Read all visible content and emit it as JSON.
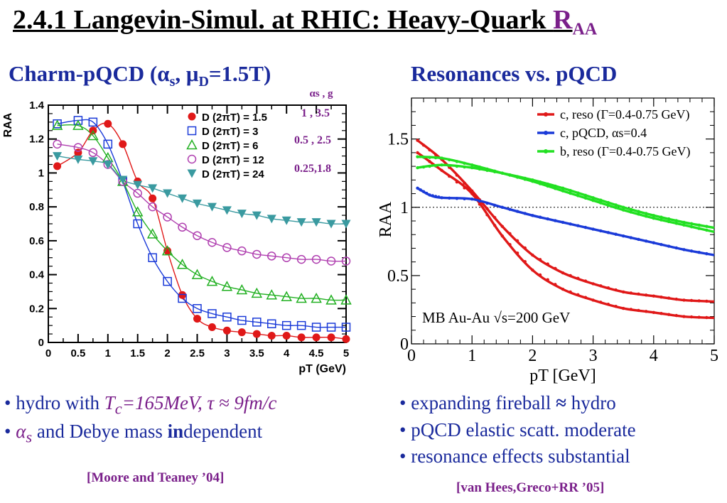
{
  "slide": {
    "title_main": "2.4.1 Langevin-Simul. at RHIC: Heavy-Quark ",
    "title_raa": "R",
    "title_raa_sub": "AA",
    "left_heading_a": "Charm-pQCD (",
    "left_heading_alpha": "α",
    "left_heading_alpha_sub": "s",
    "left_heading_b": ", ",
    "left_heading_mu": "μ",
    "left_heading_mu_sub": "D",
    "left_heading_c": "=1.5T)",
    "right_heading": "Resonances vs. pQCD",
    "left_bullets": [
      {
        "a": "• hydro with ",
        "b": "T",
        "b_sub": "c",
        "c": "=165MeV,  τ ≈ 9fm/c"
      },
      {
        "a": "• ",
        "b": "α",
        "b_sub": "s",
        "c": " and Debye mass ",
        "d": "in",
        "e": "dependent"
      }
    ],
    "right_bullets": [
      {
        "a": "• expanding fireball ",
        "b": "≈",
        "c": " hydro"
      },
      {
        "a": "• pQCD elastic scatt. moderate"
      },
      {
        "a": "• resonance effects substantial"
      }
    ],
    "left_ref": "[Moore and Teaney ’04]",
    "right_ref": "[van Hees,Greco+RR ’05]",
    "param_header": "αs ,  g",
    "param_rows": [
      "1   , 3.5",
      "0.5 , 2.5",
      "0.25,1.8"
    ]
  },
  "colors": {
    "heading_blue": "#1a2a9c",
    "accent_purple": "#7a1f8a",
    "red": "#e01818",
    "blue": "#1a3ad8",
    "green": "#22d822",
    "teal": "#3a9aa0"
  },
  "chart_data": [
    {
      "type": "line",
      "ylabel": "RAA",
      "xlabel": "pT (GeV)",
      "xlim": [
        0,
        5
      ],
      "ylim": [
        0,
        1.4
      ],
      "xticks": [
        0,
        0.5,
        1,
        1.5,
        2,
        2.5,
        3,
        3.5,
        4,
        4.5,
        5
      ],
      "xtick_labels": [
        "0",
        "0.5",
        "1",
        "1.5",
        "2",
        "2.5",
        "3",
        "3.5",
        "4",
        "4.5",
        "5"
      ],
      "yticks": [
        0,
        0.2,
        0.4,
        0.6,
        0.8,
        1,
        1.2,
        1.4
      ],
      "ytick_labels": [
        "0",
        "0.2",
        "0.4",
        "0.6",
        "0.8",
        "1",
        "1.2",
        "1.4"
      ],
      "legend_position": "top-right",
      "series": [
        {
          "name": "D (2πT) = 1.5",
          "marker": "filled-circle",
          "color": "#e01818",
          "x": [
            0.15,
            0.5,
            0.75,
            1.0,
            1.25,
            1.5,
            1.75,
            2.0,
            2.25,
            2.5,
            2.75,
            3.0,
            3.25,
            3.5,
            3.75,
            4.0,
            4.25,
            4.5,
            4.75,
            5.0
          ],
          "y": [
            1.04,
            1.12,
            1.25,
            1.29,
            1.17,
            0.95,
            0.85,
            0.54,
            0.28,
            0.14,
            0.09,
            0.07,
            0.06,
            0.05,
            0.04,
            0.04,
            0.03,
            0.03,
            0.03,
            0.02
          ]
        },
        {
          "name": "D (2πT) = 3",
          "marker": "open-square",
          "color": "#1a3ad8",
          "x": [
            0.15,
            0.5,
            0.75,
            1.0,
            1.25,
            1.5,
            1.75,
            2.0,
            2.25,
            2.5,
            2.75,
            3.0,
            3.25,
            3.5,
            3.75,
            4.0,
            4.25,
            4.5,
            4.75,
            5.0
          ],
          "y": [
            1.29,
            1.31,
            1.3,
            1.17,
            0.95,
            0.7,
            0.5,
            0.36,
            0.26,
            0.2,
            0.17,
            0.15,
            0.13,
            0.12,
            0.11,
            0.1,
            0.1,
            0.09,
            0.09,
            0.09
          ]
        },
        {
          "name": "D (2πT) = 6",
          "marker": "open-triangle-up",
          "color": "#22b022",
          "x": [
            0.15,
            0.5,
            0.75,
            1.0,
            1.25,
            1.5,
            1.75,
            2.0,
            2.25,
            2.5,
            2.75,
            3.0,
            3.25,
            3.5,
            3.75,
            4.0,
            4.25,
            4.5,
            4.75,
            5.0
          ],
          "y": [
            1.28,
            1.28,
            1.22,
            1.09,
            0.95,
            0.77,
            0.64,
            0.54,
            0.46,
            0.4,
            0.36,
            0.33,
            0.31,
            0.29,
            0.28,
            0.27,
            0.26,
            0.26,
            0.25,
            0.25
          ]
        },
        {
          "name": "D (2πT) = 12",
          "marker": "open-circle",
          "color": "#b040b0",
          "x": [
            0.15,
            0.5,
            0.75,
            1.0,
            1.25,
            1.5,
            1.75,
            2.0,
            2.25,
            2.5,
            2.75,
            3.0,
            3.25,
            3.5,
            3.75,
            4.0,
            4.25,
            4.5,
            4.75,
            5.0
          ],
          "y": [
            1.17,
            1.15,
            1.12,
            1.05,
            0.95,
            0.88,
            0.8,
            0.74,
            0.68,
            0.63,
            0.59,
            0.56,
            0.54,
            0.52,
            0.51,
            0.5,
            0.49,
            0.49,
            0.48,
            0.48
          ]
        },
        {
          "name": "D (2πT) = 24",
          "marker": "filled-triangle-down",
          "color": "#3a9aa0",
          "x": [
            0.15,
            0.5,
            0.75,
            1.0,
            1.25,
            1.5,
            1.75,
            2.0,
            2.25,
            2.5,
            2.75,
            3.0,
            3.25,
            3.5,
            3.75,
            4.0,
            4.25,
            4.5,
            4.75,
            5.0
          ],
          "y": [
            1.1,
            1.08,
            1.07,
            1.05,
            0.96,
            0.93,
            0.91,
            0.88,
            0.85,
            0.82,
            0.8,
            0.78,
            0.76,
            0.75,
            0.73,
            0.72,
            0.71,
            0.71,
            0.7,
            0.7
          ]
        }
      ]
    },
    {
      "type": "line",
      "ylabel": "RAA",
      "xlabel": "pT [GeV]",
      "xlim": [
        0,
        5
      ],
      "ylim": [
        0,
        1.8
      ],
      "xticks": [
        0,
        1,
        2,
        3,
        4,
        5
      ],
      "xtick_labels": [
        "0",
        "1",
        "2",
        "3",
        "4",
        "5"
      ],
      "yticks": [
        0,
        0.5,
        1,
        1.5
      ],
      "ytick_labels": [
        "0",
        "0.5",
        "1",
        "1.5"
      ],
      "reference_line": 1,
      "annotation": "MB Au-Au √s=200 GeV",
      "legend_position": "top-right",
      "series": [
        {
          "name": "c, reso (Γ=0.4-0.75 GeV)",
          "color": "#e01818",
          "x": [
            0.1,
            0.5,
            1.0,
            1.5,
            2.0,
            2.5,
            3.0,
            3.5,
            4.0,
            4.5,
            5.0
          ],
          "y": [
            1.49,
            1.35,
            1.12,
            0.86,
            0.65,
            0.52,
            0.44,
            0.38,
            0.35,
            0.32,
            0.31
          ]
        },
        {
          "name": "c, reso (Γ=0.4-0.75 GeV)",
          "color": "#e01818",
          "x": [
            0.1,
            0.5,
            1.0,
            1.5,
            2.0,
            2.5,
            3.0,
            3.5,
            4.0,
            4.5,
            5.0
          ],
          "y": [
            1.4,
            1.27,
            1.1,
            0.79,
            0.54,
            0.4,
            0.32,
            0.26,
            0.23,
            0.2,
            0.19
          ]
        },
        {
          "name": "c, pQCD, αs=0.4",
          "color": "#1a3ad8",
          "x": [
            0.1,
            0.3,
            0.5,
            1.0,
            1.5,
            2.0,
            2.5,
            3.0,
            3.5,
            4.0,
            4.5,
            5.0
          ],
          "y": [
            1.14,
            1.09,
            1.07,
            1.06,
            1.0,
            0.94,
            0.89,
            0.84,
            0.79,
            0.74,
            0.69,
            0.65
          ]
        },
        {
          "name": "b, reso (Γ=0.4-0.75 GeV)",
          "color": "#22e022",
          "x": [
            0.1,
            0.5,
            1.0,
            1.5,
            2.0,
            2.5,
            3.0,
            3.5,
            4.0,
            4.5,
            5.0
          ],
          "y": [
            1.37,
            1.36,
            1.31,
            1.25,
            1.19,
            1.12,
            1.05,
            0.98,
            0.92,
            0.87,
            0.82
          ]
        },
        {
          "name": "b, reso (Γ=0.4-0.75 GeV)",
          "color": "#22e022",
          "x": [
            0.1,
            0.5,
            1.0,
            1.5,
            2.0,
            2.5,
            3.0,
            3.5,
            4.0,
            4.5,
            5.0
          ],
          "y": [
            1.29,
            1.31,
            1.29,
            1.25,
            1.2,
            1.14,
            1.07,
            1.0,
            0.94,
            0.89,
            0.85
          ]
        }
      ]
    }
  ]
}
